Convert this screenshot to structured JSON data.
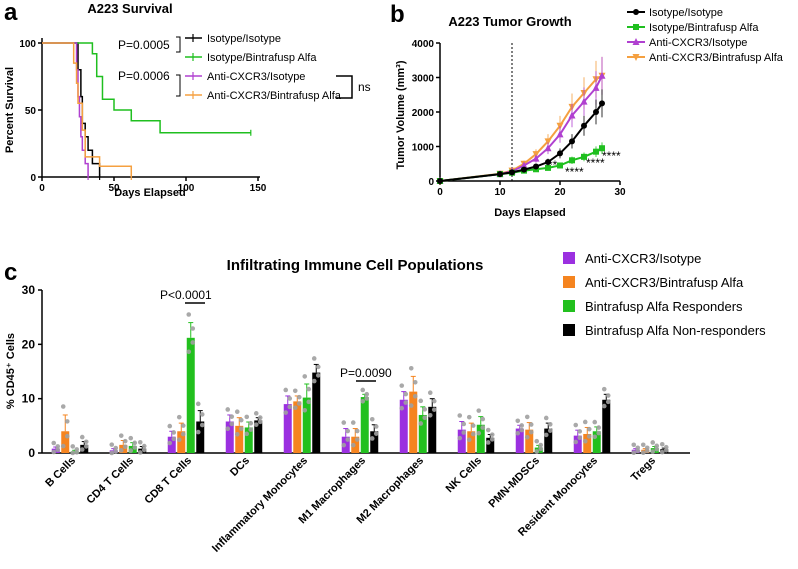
{
  "panel_labels": [
    "a",
    "b",
    "c"
  ],
  "chart_data": [
    {
      "id": "survival",
      "type": "line",
      "title": "A223 Survival",
      "xlabel": "Days Elapsed",
      "ylabel": "Percent Survival",
      "xlim": [
        0,
        150
      ],
      "ylim": [
        0,
        100
      ],
      "xticks": [
        0,
        50,
        100,
        150
      ],
      "yticks": [
        0,
        50,
        100
      ],
      "legend_position": "top-right",
      "series": [
        {
          "name": "Isotype/Isotype",
          "color": "#000000",
          "x": [
            0,
            22,
            25,
            27,
            28,
            30,
            32,
            35,
            40
          ],
          "y": [
            100,
            100,
            80,
            60,
            40,
            30,
            20,
            10,
            0
          ]
        },
        {
          "name": "Isotype/Bintrafusp Alfa",
          "color": "#1fbf1f",
          "x": [
            0,
            30,
            35,
            38,
            42,
            50,
            62,
            82,
            145
          ],
          "y": [
            100,
            100,
            92,
            75,
            58,
            50,
            42,
            33,
            33
          ]
        },
        {
          "name": "Anti-CXCR3/Isotype",
          "color": "#b040d0",
          "x": [
            0,
            22,
            24,
            25,
            26,
            27,
            28,
            30,
            32
          ],
          "y": [
            100,
            100,
            80,
            60,
            45,
            30,
            20,
            10,
            0
          ]
        },
        {
          "name": "Anti-CXCR3/Bintrafusp Alfa",
          "color": "#f5a040",
          "x": [
            0,
            20,
            22,
            24,
            25,
            28,
            30,
            40,
            62
          ],
          "y": [
            100,
            100,
            85,
            70,
            55,
            35,
            15,
            8,
            0
          ]
        }
      ],
      "annotations": [
        {
          "text": "P=0.0005"
        },
        {
          "text": "P=0.0006"
        },
        {
          "text": "ns"
        }
      ]
    },
    {
      "id": "tumor_growth",
      "type": "line",
      "title": "A223 Tumor Growth",
      "xlabel": "Days Elapsed",
      "ylabel": "Tumor  Volume  (mm³)",
      "xlim": [
        0,
        30
      ],
      "ylim": [
        0,
        4000
      ],
      "xticks": [
        0,
        10,
        20,
        30
      ],
      "yticks": [
        0,
        1000,
        2000,
        3000,
        4000
      ],
      "vline_x": 12,
      "legend_position": "top-right",
      "x": [
        0,
        10,
        12,
        14,
        16,
        18,
        20,
        22,
        24,
        26,
        27
      ],
      "series": [
        {
          "name": "Isotype/Isotype",
          "color": "#000000",
          "marker": "circle",
          "values": [
            0,
            200,
            250,
            330,
            420,
            550,
            800,
            1150,
            1600,
            2000,
            2250
          ]
        },
        {
          "name": "Isotype/Bintrafusp Alfa",
          "color": "#1fbf1f",
          "marker": "square",
          "values": [
            0,
            200,
            240,
            300,
            340,
            380,
            450,
            600,
            700,
            850,
            950
          ]
        },
        {
          "name": "Anti-CXCR3/Isotype",
          "color": "#b040d0",
          "marker": "triangle",
          "values": [
            0,
            200,
            280,
            450,
            650,
            950,
            1350,
            1900,
            2300,
            2700,
            3050
          ]
        },
        {
          "name": "Anti-CXCR3/Bintrafusp Alfa",
          "color": "#f5a040",
          "marker": "triangle-down",
          "values": [
            0,
            210,
            300,
            500,
            780,
            1150,
            1600,
            2150,
            2550,
            2950,
            3050
          ]
        }
      ],
      "annotations": [
        {
          "text": "**"
        },
        {
          "text": "****"
        },
        {
          "text": "****"
        },
        {
          "text": "****"
        }
      ]
    },
    {
      "id": "infiltrating",
      "type": "bar",
      "title": "Infiltrating Immune Cell Populations",
      "ylabel": "% CD45⁺ Cells",
      "ylim": [
        0,
        30
      ],
      "yticks": [
        0,
        10,
        20,
        30
      ],
      "legend_position": "top-right",
      "categories": [
        "B Cells",
        "CD4 T Cells",
        "CD8 T Cells",
        "DCs",
        "Inflammatory Monocytes",
        "M1 Macrophages",
        "M2 Macrophages",
        "NK Cells",
        "PMN-MDSCs",
        "Resident Monocytes",
        "Tregs"
      ],
      "series": [
        {
          "name": "Anti-CXCR3/Isotype",
          "color": "#9b30e0",
          "values": [
            0.8,
            0.5,
            3.0,
            5.8,
            9.0,
            3.0,
            9.8,
            4.3,
            4.5,
            3.2,
            0.6
          ],
          "errors": [
            0.3,
            0.3,
            1.0,
            1.2,
            1.5,
            1.5,
            1.5,
            1.5,
            0.6,
            1.0,
            0.2
          ]
        },
        {
          "name": "Anti-CXCR3/Bintrafusp Alfa",
          "color": "#f5841f",
          "values": [
            4.0,
            1.5,
            4.0,
            5.0,
            9.5,
            3.0,
            11.3,
            4.0,
            4.3,
            3.5,
            0.6
          ],
          "errors": [
            3.0,
            0.8,
            1.5,
            1.5,
            1.0,
            1.5,
            2.8,
            1.5,
            1.3,
            1.2,
            0.2
          ]
        },
        {
          "name": "Bintrafusp Alfa Responders",
          "color": "#22c01e",
          "values": [
            0.3,
            1.3,
            21.2,
            4.7,
            10.2,
            10.3,
            7.0,
            5.2,
            1.0,
            4.0,
            0.9
          ],
          "errors": [
            0.2,
            0.6,
            2.8,
            1.0,
            2.5,
            0.5,
            1.5,
            1.5,
            0.4,
            0.8,
            0.3
          ]
        },
        {
          "name": "Bintrafusp Alfa Non-responders",
          "color": "#000000",
          "values": [
            1.5,
            0.8,
            5.8,
            6.0,
            14.8,
            4.0,
            8.5,
            2.8,
            4.5,
            9.8,
            0.7
          ],
          "errors": [
            0.6,
            0.4,
            2.0,
            0.5,
            1.5,
            1.2,
            1.5,
            0.6,
            1.0,
            1.0,
            0.2
          ]
        }
      ],
      "annotations": [
        {
          "text": "P<0.0001"
        },
        {
          "text": "P=0.0090"
        }
      ]
    }
  ]
}
